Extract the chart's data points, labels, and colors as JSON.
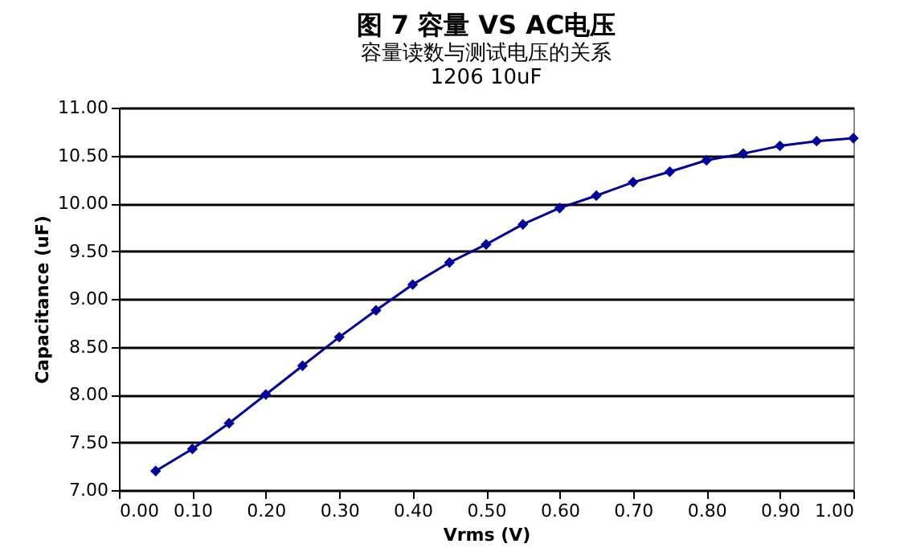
{
  "chart_data": {
    "type": "line",
    "title": "图 7 容量 VS AC电压",
    "subtitle": "容量读数与测试电压的关系",
    "annotations": [
      "1206 10uF"
    ],
    "xlabel": "Vrms (V)",
    "ylabel": "Capacitance (uF)",
    "x": [
      0.05,
      0.1,
      0.15,
      0.2,
      0.25,
      0.3,
      0.35,
      0.4,
      0.45,
      0.5,
      0.55,
      0.6,
      0.65,
      0.7,
      0.75,
      0.8,
      0.85,
      0.9,
      0.95,
      1.0
    ],
    "series": [
      {
        "color": "#00009c",
        "values": [
          7.2,
          7.43,
          7.7,
          8.0,
          8.3,
          8.6,
          8.88,
          9.15,
          9.38,
          9.57,
          9.78,
          9.95,
          10.08,
          10.22,
          10.33,
          10.45,
          10.52,
          10.6,
          10.65,
          10.68
        ]
      }
    ],
    "xlim": [
      0,
      1
    ],
    "xticks": [
      {
        "value": 0,
        "label": "0.00"
      },
      {
        "value": 0.1,
        "label": "0.10"
      },
      {
        "value": 0.2,
        "label": "0.20"
      },
      {
        "value": 0.3,
        "label": "0.30"
      },
      {
        "value": 0.4,
        "label": "0.40"
      },
      {
        "value": 0.5,
        "label": "0.50"
      },
      {
        "value": 0.6,
        "label": "0.60"
      },
      {
        "value": 0.7,
        "label": "0.70"
      },
      {
        "value": 0.8,
        "label": "0.80"
      },
      {
        "value": 0.9,
        "label": "0.90"
      },
      {
        "value": 1,
        "label": "1.00"
      }
    ],
    "ylim": [
      7,
      11
    ],
    "yticks": [
      {
        "value": 7,
        "label": "7.00"
      },
      {
        "value": 7.5,
        "label": "7.50"
      },
      {
        "value": 8,
        "label": "8.00"
      },
      {
        "value": 8.5,
        "label": "8.50"
      },
      {
        "value": 9,
        "label": "9.00"
      },
      {
        "value": 9.5,
        "label": "9.50"
      },
      {
        "value": 10,
        "label": "10.00"
      },
      {
        "value": 10.5,
        "label": "10.50"
      },
      {
        "value": 11,
        "label": "11.00"
      }
    ],
    "grid": "y",
    "marker": "diamond",
    "line_style": "solid"
  }
}
